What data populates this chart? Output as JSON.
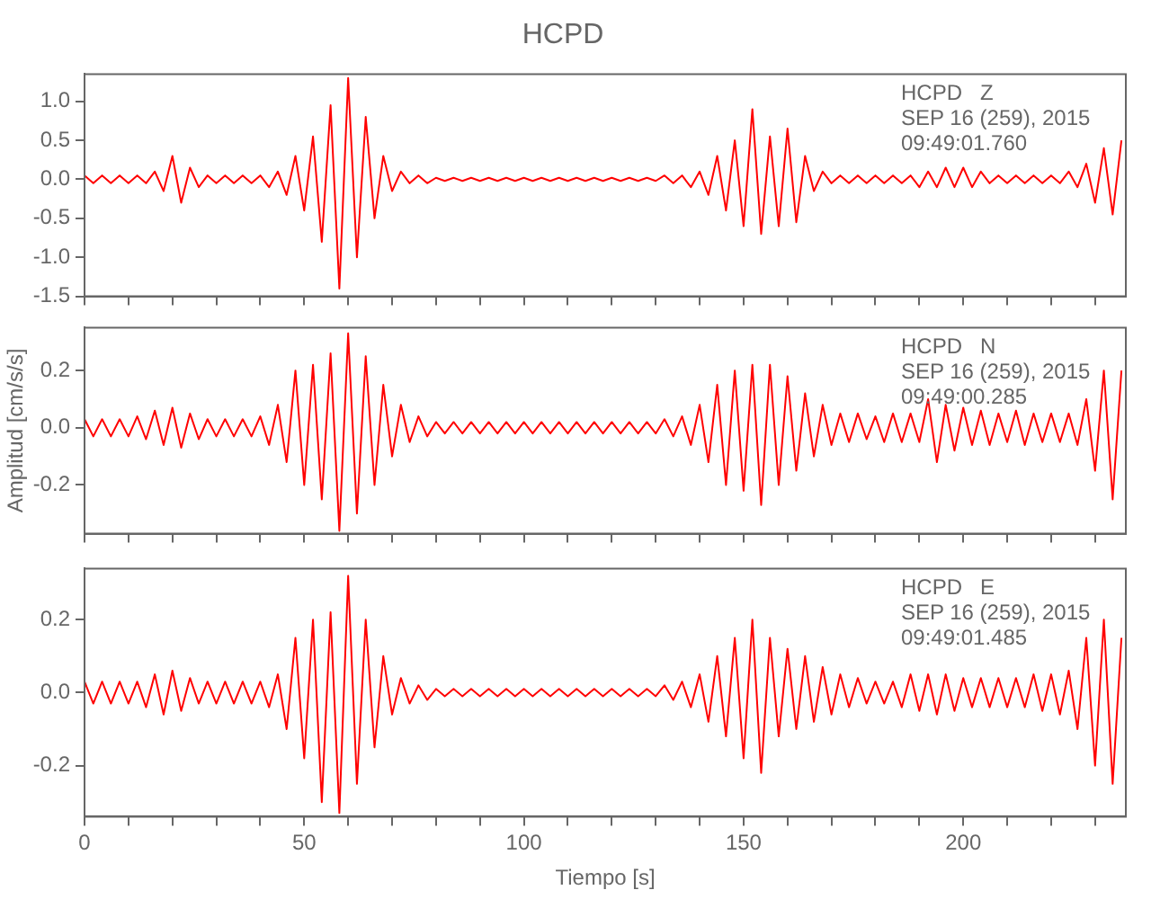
{
  "chart_data": [
    {
      "type": "line",
      "title": "HCPD",
      "annotations": [
        "HCPD   Z",
        "SEP 16 (259), 2015",
        "09:49:01.760"
      ],
      "color": "#ff0000",
      "tick_labels": "y",
      "xlim": [
        0,
        237
      ],
      "xticks": [
        0,
        {
          "value": 10,
          "label": null
        },
        {
          "value": 20,
          "label": null
        },
        {
          "value": 30,
          "label": null
        },
        {
          "value": 40,
          "label": null
        },
        50,
        {
          "value": 60,
          "label": null
        },
        {
          "value": 70,
          "label": null
        },
        {
          "value": 80,
          "label": null
        },
        {
          "value": 90,
          "label": null
        },
        100,
        {
          "value": 110,
          "label": null
        },
        {
          "value": 120,
          "label": null
        },
        {
          "value": 130,
          "label": null
        },
        {
          "value": 140,
          "label": null
        },
        150,
        {
          "value": 160,
          "label": null
        },
        {
          "value": 170,
          "label": null
        },
        {
          "value": 180,
          "label": null
        },
        {
          "value": 190,
          "label": null
        },
        200,
        {
          "value": 210,
          "label": null
        },
        {
          "value": 220,
          "label": null
        },
        {
          "value": 230,
          "label": null
        }
      ],
      "ylim": [
        -1.5,
        1.35
      ],
      "yticks": [
        {
          "value": -1.5,
          "label": "-1.5"
        },
        {
          "value": -1,
          "label": "-1.0"
        },
        {
          "value": -0.5,
          "label": "-0.5"
        },
        {
          "value": 0,
          "label": "0.0"
        },
        {
          "value": 0.5,
          "label": "0.5"
        },
        {
          "value": 1,
          "label": "1.0"
        }
      ],
      "x": [
        0,
        2,
        4,
        6,
        8,
        10,
        12,
        14,
        16,
        18,
        20,
        22,
        24,
        26,
        28,
        30,
        32,
        34,
        36,
        38,
        40,
        42,
        44,
        46,
        48,
        50,
        52,
        54,
        56,
        58,
        60,
        62,
        64,
        66,
        68,
        70,
        72,
        74,
        76,
        78,
        80,
        82,
        84,
        86,
        88,
        90,
        92,
        94,
        96,
        98,
        100,
        102,
        104,
        106,
        108,
        110,
        112,
        114,
        116,
        118,
        120,
        122,
        124,
        126,
        128,
        130,
        132,
        134,
        136,
        138,
        140,
        142,
        144,
        146,
        148,
        150,
        152,
        154,
        156,
        158,
        160,
        162,
        164,
        166,
        168,
        170,
        172,
        174,
        176,
        178,
        180,
        182,
        184,
        186,
        188,
        190,
        192,
        194,
        196,
        198,
        200,
        202,
        204,
        206,
        208,
        210,
        212,
        214,
        216,
        218,
        220,
        222,
        224,
        226,
        228,
        230,
        232,
        234,
        236
      ],
      "values": [
        0.05,
        -0.05,
        0.05,
        -0.05,
        0.05,
        -0.05,
        0.05,
        -0.05,
        0.1,
        -0.15,
        0.3,
        -0.3,
        0.15,
        -0.1,
        0.05,
        -0.05,
        0.05,
        -0.05,
        0.05,
        -0.05,
        0.05,
        -0.1,
        0.1,
        -0.2,
        0.3,
        -0.4,
        0.55,
        -0.8,
        0.95,
        -1.4,
        1.3,
        -1.0,
        0.8,
        -0.5,
        0.3,
        -0.15,
        0.1,
        -0.05,
        0.05,
        -0.05,
        0.02,
        -0.02,
        0.02,
        -0.02,
        0.02,
        -0.02,
        0.02,
        -0.02,
        0.02,
        -0.02,
        0.02,
        -0.02,
        0.02,
        -0.02,
        0.02,
        -0.02,
        0.02,
        -0.02,
        0.02,
        -0.02,
        0.02,
        -0.02,
        0.02,
        -0.02,
        0.02,
        -0.02,
        0.05,
        -0.05,
        0.05,
        -0.1,
        0.1,
        -0.2,
        0.3,
        -0.4,
        0.5,
        -0.6,
        0.9,
        -0.7,
        0.55,
        -0.6,
        0.65,
        -0.55,
        0.3,
        -0.15,
        0.1,
        -0.05,
        0.05,
        -0.05,
        0.05,
        -0.05,
        0.05,
        -0.05,
        0.05,
        -0.05,
        0.05,
        -0.1,
        0.1,
        -0.1,
        0.15,
        -0.1,
        0.15,
        -0.1,
        0.1,
        -0.05,
        0.05,
        -0.05,
        0.05,
        -0.05,
        0.05,
        -0.05,
        0.05,
        -0.05,
        0.1,
        -0.1,
        0.2,
        -0.3,
        0.4,
        -0.45,
        0.5
      ]
    },
    {
      "type": "line",
      "ylabel": "Amplitud [cm/s/s]",
      "annotations": [
        "HCPD   N",
        "SEP 16 (259), 2015",
        "09:49:00.285"
      ],
      "color": "#ff0000",
      "tick_labels": "y",
      "xlim": [
        0,
        237
      ],
      "xticks": [
        0,
        {
          "value": 10,
          "label": null
        },
        {
          "value": 20,
          "label": null
        },
        {
          "value": 30,
          "label": null
        },
        {
          "value": 40,
          "label": null
        },
        50,
        {
          "value": 60,
          "label": null
        },
        {
          "value": 70,
          "label": null
        },
        {
          "value": 80,
          "label": null
        },
        {
          "value": 90,
          "label": null
        },
        100,
        {
          "value": 110,
          "label": null
        },
        {
          "value": 120,
          "label": null
        },
        {
          "value": 130,
          "label": null
        },
        {
          "value": 140,
          "label": null
        },
        150,
        {
          "value": 160,
          "label": null
        },
        {
          "value": 170,
          "label": null
        },
        {
          "value": 180,
          "label": null
        },
        {
          "value": 190,
          "label": null
        },
        200,
        {
          "value": 210,
          "label": null
        },
        {
          "value": 220,
          "label": null
        },
        {
          "value": 230,
          "label": null
        }
      ],
      "ylim": [
        -0.37,
        0.35
      ],
      "yticks": [
        {
          "value": -0.2,
          "label": "-0.2"
        },
        {
          "value": 0,
          "label": "0.0"
        },
        {
          "value": 0.2,
          "label": "0.2"
        }
      ],
      "x": [
        0,
        2,
        4,
        6,
        8,
        10,
        12,
        14,
        16,
        18,
        20,
        22,
        24,
        26,
        28,
        30,
        32,
        34,
        36,
        38,
        40,
        42,
        44,
        46,
        48,
        50,
        52,
        54,
        56,
        58,
        60,
        62,
        64,
        66,
        68,
        70,
        72,
        74,
        76,
        78,
        80,
        82,
        84,
        86,
        88,
        90,
        92,
        94,
        96,
        98,
        100,
        102,
        104,
        106,
        108,
        110,
        112,
        114,
        116,
        118,
        120,
        122,
        124,
        126,
        128,
        130,
        132,
        134,
        136,
        138,
        140,
        142,
        144,
        146,
        148,
        150,
        152,
        154,
        156,
        158,
        160,
        162,
        164,
        166,
        168,
        170,
        172,
        174,
        176,
        178,
        180,
        182,
        184,
        186,
        188,
        190,
        192,
        194,
        196,
        198,
        200,
        202,
        204,
        206,
        208,
        210,
        212,
        214,
        216,
        218,
        220,
        222,
        224,
        226,
        228,
        230,
        232,
        234,
        236
      ],
      "values": [
        0.03,
        -0.03,
        0.03,
        -0.03,
        0.03,
        -0.03,
        0.04,
        -0.04,
        0.06,
        -0.06,
        0.07,
        -0.07,
        0.05,
        -0.04,
        0.03,
        -0.03,
        0.03,
        -0.03,
        0.03,
        -0.03,
        0.04,
        -0.06,
        0.08,
        -0.12,
        0.2,
        -0.2,
        0.22,
        -0.25,
        0.26,
        -0.36,
        0.33,
        -0.3,
        0.25,
        -0.2,
        0.15,
        -0.1,
        0.08,
        -0.05,
        0.04,
        -0.03,
        0.02,
        -0.02,
        0.02,
        -0.02,
        0.02,
        -0.02,
        0.02,
        -0.02,
        0.02,
        -0.02,
        0.02,
        -0.02,
        0.02,
        -0.02,
        0.02,
        -0.02,
        0.02,
        -0.02,
        0.02,
        -0.02,
        0.02,
        -0.02,
        0.02,
        -0.02,
        0.02,
        -0.02,
        0.03,
        -0.03,
        0.04,
        -0.06,
        0.08,
        -0.12,
        0.15,
        -0.2,
        0.2,
        -0.22,
        0.22,
        -0.27,
        0.22,
        -0.2,
        0.18,
        -0.15,
        0.12,
        -0.1,
        0.08,
        -0.06,
        0.05,
        -0.05,
        0.05,
        -0.04,
        0.04,
        -0.05,
        0.05,
        -0.05,
        0.05,
        -0.05,
        0.1,
        -0.12,
        0.08,
        -0.08,
        0.07,
        -0.06,
        0.06,
        -0.06,
        0.05,
        -0.05,
        0.06,
        -0.06,
        0.05,
        -0.05,
        0.05,
        -0.05,
        0.05,
        -0.06,
        0.1,
        -0.15,
        0.2,
        -0.25,
        0.2
      ]
    },
    {
      "type": "line",
      "xlabel": "Tiempo [s]",
      "annotations": [
        "HCPD   E",
        "SEP 16 (259), 2015",
        "09:49:01.485"
      ],
      "color": "#ff0000",
      "xlim": [
        0,
        237
      ],
      "xticks": [
        0,
        {
          "value": 10,
          "label": null
        },
        {
          "value": 20,
          "label": null
        },
        {
          "value": 30,
          "label": null
        },
        {
          "value": 40,
          "label": null
        },
        50,
        {
          "value": 60,
          "label": null
        },
        {
          "value": 70,
          "label": null
        },
        {
          "value": 80,
          "label": null
        },
        {
          "value": 90,
          "label": null
        },
        100,
        {
          "value": 110,
          "label": null
        },
        {
          "value": 120,
          "label": null
        },
        {
          "value": 130,
          "label": null
        },
        {
          "value": 140,
          "label": null
        },
        150,
        {
          "value": 160,
          "label": null
        },
        {
          "value": 170,
          "label": null
        },
        {
          "value": 180,
          "label": null
        },
        {
          "value": 190,
          "label": null
        },
        200,
        {
          "value": 210,
          "label": null
        },
        {
          "value": 220,
          "label": null
        },
        {
          "value": 230,
          "label": null
        }
      ],
      "ylim": [
        -0.34,
        0.34
      ],
      "yticks": [
        {
          "value": -0.2,
          "label": "-0.2"
        },
        {
          "value": 0,
          "label": "0.0"
        },
        {
          "value": 0.2,
          "label": "0.2"
        }
      ],
      "x": [
        0,
        2,
        4,
        6,
        8,
        10,
        12,
        14,
        16,
        18,
        20,
        22,
        24,
        26,
        28,
        30,
        32,
        34,
        36,
        38,
        40,
        42,
        44,
        46,
        48,
        50,
        52,
        54,
        56,
        58,
        60,
        62,
        64,
        66,
        68,
        70,
        72,
        74,
        76,
        78,
        80,
        82,
        84,
        86,
        88,
        90,
        92,
        94,
        96,
        98,
        100,
        102,
        104,
        106,
        108,
        110,
        112,
        114,
        116,
        118,
        120,
        122,
        124,
        126,
        128,
        130,
        132,
        134,
        136,
        138,
        140,
        142,
        144,
        146,
        148,
        150,
        152,
        154,
        156,
        158,
        160,
        162,
        164,
        166,
        168,
        170,
        172,
        174,
        176,
        178,
        180,
        182,
        184,
        186,
        188,
        190,
        192,
        194,
        196,
        198,
        200,
        202,
        204,
        206,
        208,
        210,
        212,
        214,
        216,
        218,
        220,
        222,
        224,
        226,
        228,
        230,
        232,
        234,
        236
      ],
      "values": [
        0.03,
        -0.03,
        0.03,
        -0.03,
        0.03,
        -0.03,
        0.03,
        -0.04,
        0.05,
        -0.06,
        0.06,
        -0.05,
        0.04,
        -0.03,
        0.03,
        -0.03,
        0.03,
        -0.03,
        0.03,
        -0.03,
        0.03,
        -0.04,
        0.05,
        -0.1,
        0.15,
        -0.18,
        0.2,
        -0.3,
        0.22,
        -0.33,
        0.32,
        -0.25,
        0.2,
        -0.15,
        0.1,
        -0.06,
        0.04,
        -0.03,
        0.02,
        -0.02,
        0.01,
        -0.01,
        0.01,
        -0.01,
        0.01,
        -0.01,
        0.01,
        -0.01,
        0.01,
        -0.01,
        0.01,
        -0.01,
        0.01,
        -0.01,
        0.01,
        -0.01,
        0.01,
        -0.01,
        0.01,
        -0.01,
        0.01,
        -0.01,
        0.01,
        -0.01,
        0.01,
        -0.01,
        0.02,
        -0.02,
        0.03,
        -0.04,
        0.05,
        -0.08,
        0.1,
        -0.12,
        0.15,
        -0.18,
        0.2,
        -0.22,
        0.15,
        -0.12,
        0.12,
        -0.1,
        0.1,
        -0.08,
        0.07,
        -0.06,
        0.05,
        -0.04,
        0.04,
        -0.03,
        0.03,
        -0.03,
        0.03,
        -0.04,
        0.05,
        -0.05,
        0.05,
        -0.06,
        0.05,
        -0.05,
        0.04,
        -0.04,
        0.04,
        -0.04,
        0.04,
        -0.04,
        0.04,
        -0.04,
        0.05,
        -0.05,
        0.05,
        -0.06,
        0.06,
        -0.1,
        0.15,
        -0.2,
        0.2,
        -0.25,
        0.15
      ]
    }
  ]
}
